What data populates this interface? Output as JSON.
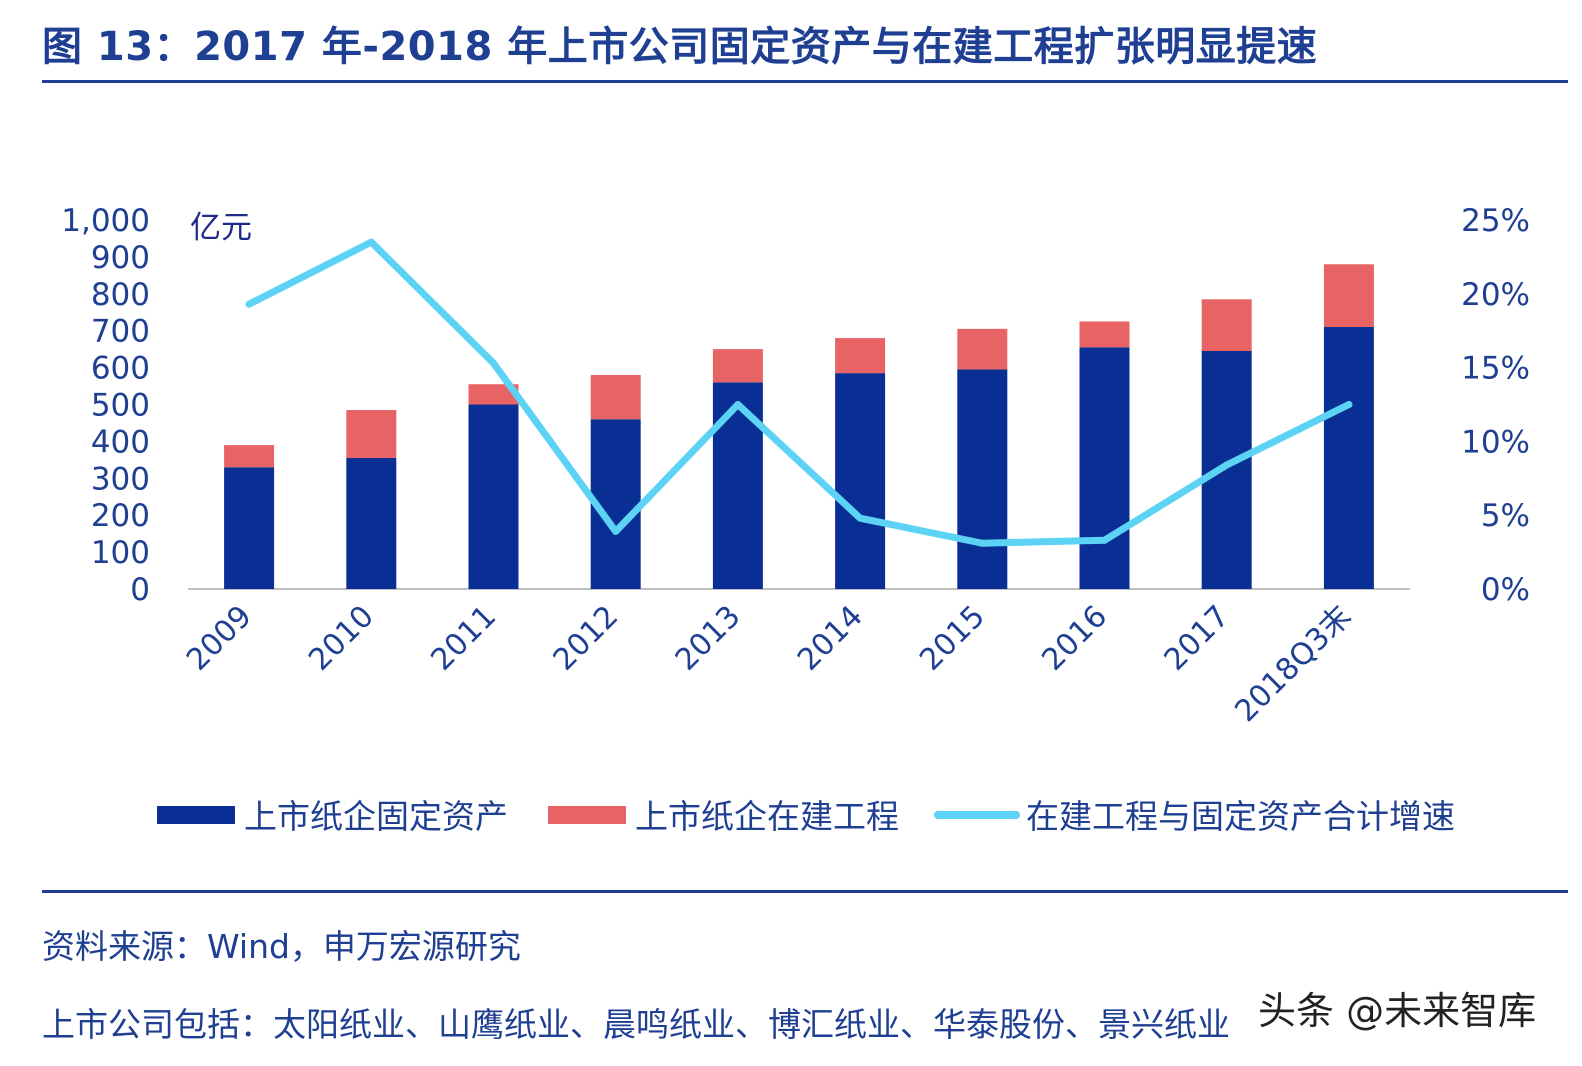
{
  "header": {
    "title": "图 13：2017 年-2018 年上市公司固定资产与在建工程扩张明显提速"
  },
  "chart_data": {
    "type": "bar",
    "stacked": true,
    "categories": [
      "2009",
      "2010",
      "2011",
      "2012",
      "2013",
      "2014",
      "2015",
      "2016",
      "2017",
      "2018Q3末"
    ],
    "series": [
      {
        "name": "上市纸企固定资产",
        "kind": "bar",
        "axis": "left",
        "color": "#0a2f94",
        "values": [
          330,
          355,
          500,
          460,
          560,
          585,
          595,
          655,
          645,
          710
        ]
      },
      {
        "name": "上市纸企在建工程",
        "kind": "bar",
        "axis": "left",
        "color": "#e86364",
        "values": [
          60,
          130,
          55,
          120,
          90,
          95,
          110,
          70,
          140,
          170
        ]
      },
      {
        "name": "在建工程与固定资产合计增速",
        "kind": "line",
        "axis": "right",
        "color": "#5cd3f5",
        "values": [
          19.3,
          23.5,
          15.3,
          3.9,
          12.5,
          4.8,
          3.1,
          3.3,
          8.4,
          12.5
        ]
      }
    ],
    "ylabel": "亿元",
    "ylim": [
      0,
      1000
    ],
    "yticks": [
      "0",
      "100",
      "200",
      "300",
      "400",
      "500",
      "600",
      "700",
      "800",
      "900",
      "1,000"
    ],
    "y2lim": [
      0,
      25
    ],
    "y2ticks": [
      "0%",
      "5%",
      "10%",
      "15%",
      "20%",
      "25%"
    ],
    "grid": false,
    "legend": "bottom"
  },
  "footer": {
    "source": "资料来源：Wind，申万宏源研究",
    "companies": "上市公司包括：太阳纸业、山鹰纸业、晨鸣纸业、博汇纸业、华泰股份、景兴纸业"
  },
  "watermark": "头条 @未来智库"
}
